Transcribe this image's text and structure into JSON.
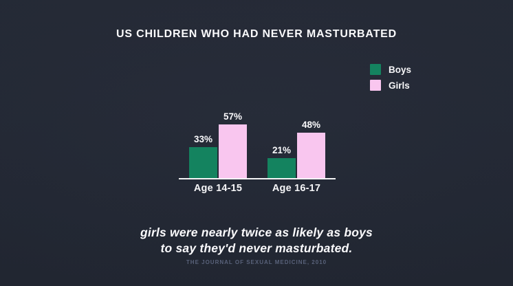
{
  "page": {
    "background_color": "#232834"
  },
  "title": "US CHILDREN WHO HAD NEVER MASTURBATED",
  "legend": [
    {
      "label": "Boys",
      "color": "#14835f"
    },
    {
      "label": "Girls",
      "color": "#f9c6ef"
    }
  ],
  "chart_data": {
    "type": "bar",
    "title": "US CHILDREN WHO HAD NEVER MASTURBATED",
    "categories": [
      "Age 14-15",
      "Age 16-17"
    ],
    "series": [
      {
        "name": "Boys",
        "color": "#14835f",
        "values": [
          33,
          21
        ]
      },
      {
        "name": "Girls",
        "color": "#f9c6ef",
        "values": [
          57,
          48
        ]
      }
    ],
    "value_suffix": "%",
    "xlabel": "",
    "ylabel": "",
    "ylim": [
      0,
      60
    ],
    "grid": false,
    "legend_position": "top-right",
    "value_labels": [
      "33%",
      "57%",
      "21%",
      "48%"
    ]
  },
  "caption": {
    "line1": "girls were nearly twice as likely as boys",
    "line2": "to say they'd never masturbated."
  },
  "source": "THE JOURNAL OF SEXUAL MEDICINE, 2010"
}
